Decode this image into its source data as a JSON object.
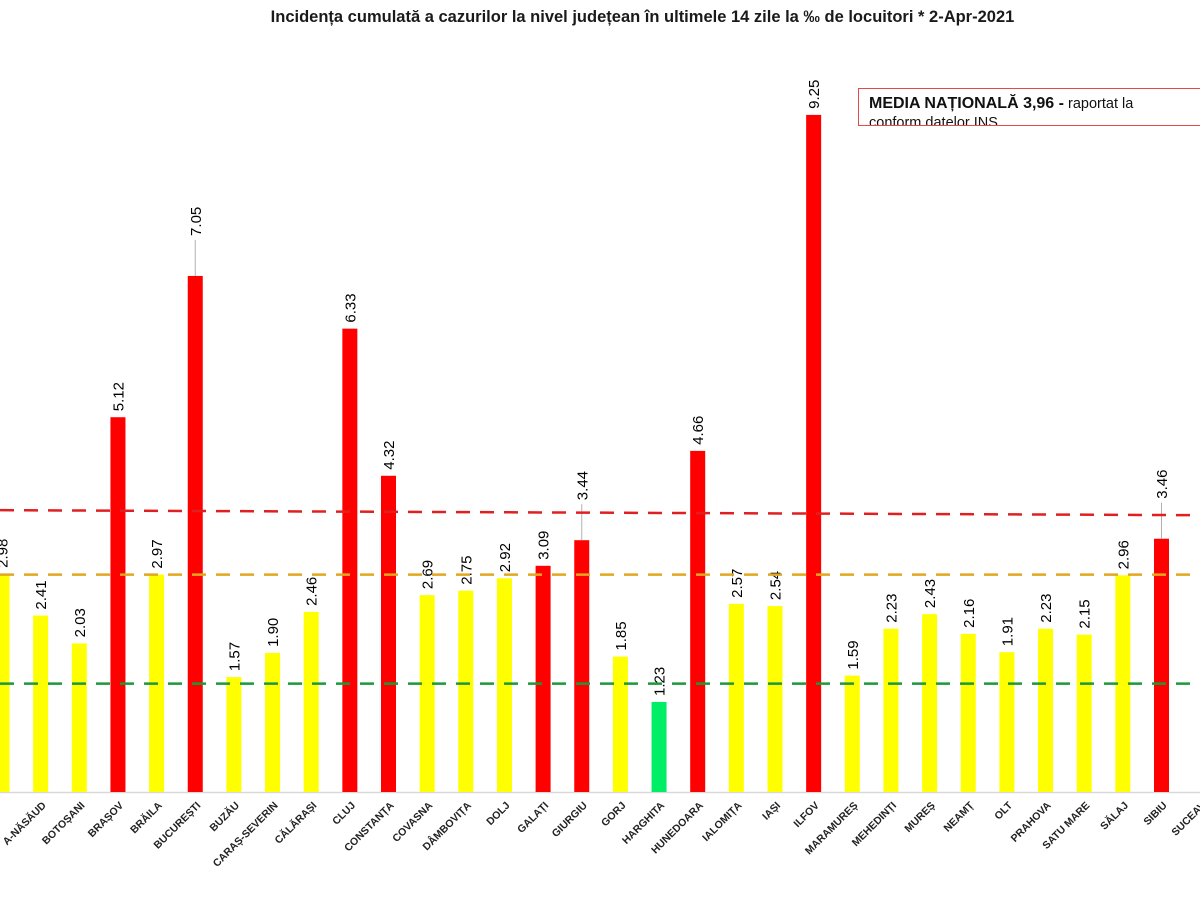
{
  "chart_data": {
    "type": "bar",
    "title": "Incidența cumulată a cazurilor la nivel județean în ultimele 14 zile la ‰ de locuitori * 2-Apr-2021",
    "xlabel": "",
    "ylabel": "",
    "ylim": [
      0,
      10
    ],
    "grid": false,
    "categories": [
      "",
      "BISTRIȚA-NĂSĂUD",
      "BOTOȘANI",
      "BRAȘOV",
      "BRĂILA",
      "BUCUREȘTI",
      "BUZĂU",
      "CARAȘ-SEVERIN",
      "CĂLĂRAȘI",
      "CLUJ",
      "CONSTANȚA",
      "COVASNA",
      "DÂMBOVIȚA",
      "DOLJ",
      "GALAȚI",
      "GIURGIU",
      "GORJ",
      "HARGHITA",
      "HUNEDOARA",
      "IALOMIȚA",
      "IAȘI",
      "ILFOV",
      "MARAMUREȘ",
      "MEHEDINȚI",
      "MUREȘ",
      "NEAMȚ",
      "OLT",
      "PRAHOVA",
      "SATU MARE",
      "SĂLAJ",
      "SIBIU",
      "SUCEAVA"
    ],
    "display_categories": [
      "",
      "A-NĂSĂUD",
      "BOTOȘANI",
      "BRAȘOV",
      "BRĂILA",
      "BUCUREȘTI",
      "BUZĂU",
      "CARAȘ-SEVERIN",
      "CĂLĂRAȘI",
      "CLUJ",
      "CONSTANȚA",
      "COVASNA",
      "DÂMBOVIȚA",
      "DOLJ",
      "GALAȚI",
      "GIURGIU",
      "GORJ",
      "HARGHITA",
      "HUNEDOARA",
      "IALOMIȚA",
      "IAȘI",
      "ILFOV",
      "MARAMUREȘ",
      "MEHEDINȚI",
      "MUREȘ",
      "NEAMȚ",
      "OLT",
      "PRAHOVA",
      "SATU MARE",
      "SĂLAJ",
      "SIBIU",
      "SUCEAV"
    ],
    "values": [
      2.98,
      2.41,
      2.03,
      5.12,
      2.97,
      7.05,
      1.57,
      1.9,
      2.46,
      6.33,
      4.32,
      2.69,
      2.75,
      2.92,
      3.09,
      3.44,
      1.85,
      1.23,
      4.66,
      2.57,
      2.54,
      9.25,
      1.59,
      2.23,
      2.43,
      2.16,
      1.91,
      2.23,
      2.15,
      2.96,
      3.46,
      null
    ],
    "value_labels": [
      "2.98",
      "2.41",
      "2.03",
      "5.12",
      "2.97",
      "7.05",
      "1.57",
      "1.90",
      "2.46",
      "6.33",
      "4.32",
      "2.69",
      "2.75",
      "2.92",
      "3.09",
      "3.44",
      "1.85",
      "1.23",
      "4.66",
      "2.57",
      "2.54",
      "9.25",
      "1.59",
      "2.23",
      "2.43",
      "2.16",
      "1.91",
      "2.23",
      "2.15",
      "2.96",
      "3.46",
      ""
    ],
    "colors": {
      "red": "#ff0000",
      "yellow": "#ffff00",
      "green": "#00ee66",
      "red_line": "#e02020",
      "yellow_line": "#e0a820",
      "green_line": "#1a9a3a"
    },
    "bar_color_keys": [
      "yellow",
      "yellow",
      "yellow",
      "red",
      "yellow",
      "red",
      "yellow",
      "yellow",
      "yellow",
      "red",
      "red",
      "yellow",
      "yellow",
      "yellow",
      "red",
      "red",
      "yellow",
      "green",
      "red",
      "yellow",
      "yellow",
      "red",
      "yellow",
      "yellow",
      "yellow",
      "yellow",
      "yellow",
      "yellow",
      "yellow",
      "yellow",
      "red",
      "yellow"
    ],
    "thresholds": [
      {
        "name": "red",
        "value": 3.85
      },
      {
        "name": "yellow",
        "value": 2.97
      },
      {
        "name": "green",
        "value": 1.48
      }
    ],
    "annotation": {
      "bold": "MEDIA NAȚIONALĂ  3,96 -",
      "rest": " raportat la",
      "line2": "conform datelor INS"
    }
  }
}
